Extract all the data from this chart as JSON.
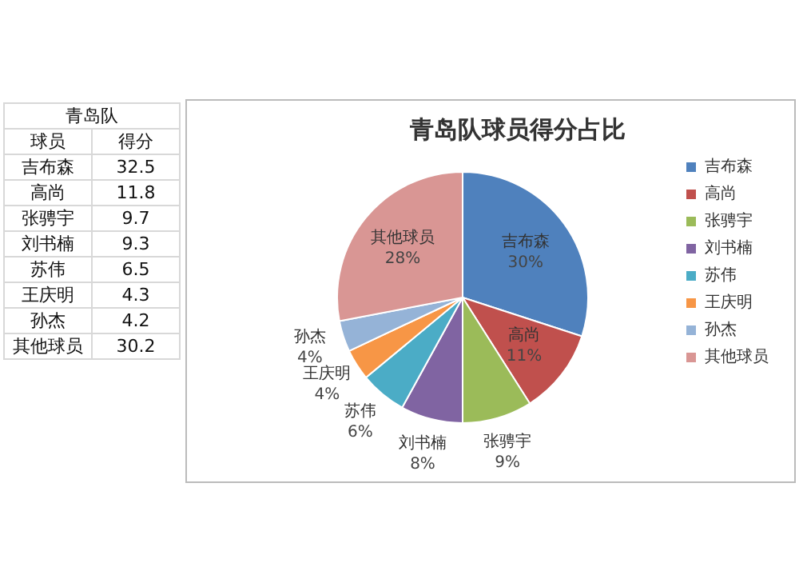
{
  "chart_data": [
    {
      "type": "other",
      "title": "青岛队",
      "categories": [
        "吉布森",
        "高尚",
        "张骋宇",
        "刘书楠",
        "苏伟",
        "王庆明",
        "孙杰",
        "其他球员"
      ],
      "values": [
        32.5,
        11.8,
        9.7,
        9.3,
        6.5,
        4.3,
        4.2,
        30.2
      ],
      "annotations": [
        "球员",
        "得分"
      ],
      "data_labels": true
    },
    {
      "type": "pie",
      "title": "青岛队球员得分占比",
      "categories": [
        "吉布森",
        "高尚",
        "张骋宇",
        "刘书楠",
        "苏伟",
        "王庆明",
        "孙杰",
        "其他球员"
      ],
      "values": [
        30,
        11,
        9,
        8,
        6,
        4,
        4,
        28
      ],
      "colors": [
        "#4f81bd",
        "#c0504d",
        "#9bbb59",
        "#8064a2",
        "#4bacc6",
        "#f79646",
        "#95b3d7",
        "#d99694"
      ],
      "value_labels": [
        "30%",
        "11%",
        "9%",
        "8%",
        "6%",
        "4%",
        "4%",
        "28%"
      ],
      "legend": "right"
    }
  ]
}
